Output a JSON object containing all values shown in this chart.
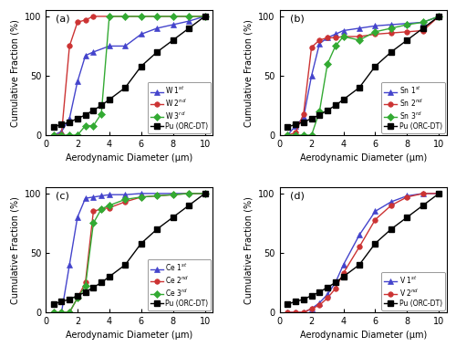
{
  "pu_orc_dt": {
    "x": [
      0.5,
      1.0,
      1.5,
      2.0,
      2.5,
      3.0,
      3.5,
      4.0,
      5.0,
      6.0,
      7.0,
      8.0,
      9.0,
      10.0
    ],
    "y": [
      7,
      9,
      11,
      14,
      17,
      21,
      25,
      30,
      40,
      58,
      70,
      80,
      90,
      100
    ]
  },
  "panel_a": {
    "title": "(a)",
    "series": [
      {
        "label": "W 1$^{st}$",
        "color": "#4444cc",
        "marker": "^",
        "x": [
          0.5,
          1.0,
          1.5,
          2.0,
          2.5,
          3.0,
          4.0,
          5.0,
          6.0,
          7.0,
          8.0,
          9.0,
          10.0
        ],
        "y": [
          0,
          3,
          14,
          45,
          67,
          70,
          75,
          75,
          85,
          90,
          93,
          96,
          100
        ]
      },
      {
        "label": "W 2$^{nd}$",
        "color": "#cc3333",
        "marker": "o",
        "x": [
          0.5,
          1.0,
          1.5,
          2.0,
          2.5,
          3.0,
          10.0
        ],
        "y": [
          0,
          1,
          75,
          95,
          97,
          100,
          100
        ]
      },
      {
        "label": "W 3$^{rd}$",
        "color": "#33aa33",
        "marker": "D",
        "x": [
          0.5,
          1.0,
          1.5,
          2.0,
          2.5,
          3.0,
          3.5,
          4.0,
          5.0,
          6.0,
          7.0,
          8.0,
          9.0,
          10.0
        ],
        "y": [
          0,
          0,
          0,
          0,
          8,
          8,
          18,
          100,
          100,
          100,
          100,
          100,
          100,
          100
        ]
      }
    ]
  },
  "panel_b": {
    "title": "(b)",
    "series": [
      {
        "label": "Sn 1$^{st}$",
        "color": "#4444cc",
        "marker": "^",
        "x": [
          0.5,
          1.0,
          1.5,
          2.0,
          2.5,
          3.0,
          3.5,
          4.0,
          5.0,
          6.0,
          7.0,
          8.0,
          9.0,
          10.0
        ],
        "y": [
          0,
          8,
          15,
          50,
          77,
          82,
          85,
          88,
          90,
          92,
          93,
          94,
          95,
          100
        ]
      },
      {
        "label": "Sn 2$^{nd}$",
        "color": "#cc3333",
        "marker": "o",
        "x": [
          0.5,
          1.0,
          1.5,
          2.0,
          2.5,
          3.0,
          3.5,
          4.0,
          5.0,
          6.0,
          7.0,
          8.0,
          9.0,
          10.0
        ],
        "y": [
          0,
          2,
          18,
          74,
          80,
          82,
          82,
          83,
          83,
          85,
          86,
          87,
          88,
          100
        ]
      },
      {
        "label": "Sn 3$^{rd}$",
        "color": "#33aa33",
        "marker": "D",
        "x": [
          0.5,
          1.0,
          1.5,
          2.0,
          2.5,
          3.0,
          3.5,
          4.0,
          5.0,
          6.0,
          7.0,
          8.0,
          9.0,
          10.0
        ],
        "y": [
          0,
          0,
          0,
          0,
          20,
          60,
          75,
          83,
          80,
          87,
          90,
          93,
          95,
          100
        ]
      }
    ]
  },
  "panel_c": {
    "title": "(c)",
    "series": [
      {
        "label": "Ce 1$^{st}$",
        "color": "#4444cc",
        "marker": "^",
        "x": [
          0.5,
          1.0,
          1.5,
          2.0,
          2.5,
          3.0,
          3.5,
          4.0,
          5.0,
          6.0,
          10.0
        ],
        "y": [
          0,
          0,
          40,
          80,
          96,
          97,
          98,
          99,
          99,
          100,
          100
        ]
      },
      {
        "label": "Ce 2$^{nd}$",
        "color": "#cc3333",
        "marker": "o",
        "x": [
          0.5,
          1.0,
          1.5,
          2.0,
          2.5,
          3.0,
          3.5,
          4.0,
          5.0,
          6.0,
          7.0,
          8.0,
          9.0,
          10.0
        ],
        "y": [
          0,
          0,
          0,
          12,
          25,
          85,
          87,
          88,
          93,
          97,
          98,
          99,
          100,
          100
        ]
      },
      {
        "label": "Ce 3$^{rd}$",
        "color": "#33aa33",
        "marker": "D",
        "x": [
          0.5,
          1.0,
          1.5,
          2.0,
          2.5,
          3.0,
          3.5,
          4.0,
          5.0,
          6.0,
          7.0,
          8.0,
          9.0,
          10.0
        ],
        "y": [
          0,
          0,
          0,
          12,
          22,
          75,
          87,
          90,
          95,
          97,
          98,
          99,
          100,
          100
        ]
      }
    ]
  },
  "panel_d": {
    "title": "(d)",
    "series": [
      {
        "label": "V 1$^{st}$",
        "color": "#4444cc",
        "marker": "^",
        "x": [
          0.5,
          1.0,
          1.5,
          2.0,
          2.5,
          3.0,
          3.5,
          4.0,
          5.0,
          6.0,
          7.0,
          8.0,
          9.0,
          10.0
        ],
        "y": [
          0,
          0,
          0,
          3,
          8,
          15,
          25,
          40,
          65,
          85,
          93,
          98,
          100,
          100
        ]
      },
      {
        "label": "V 2$^{nd}$",
        "color": "#cc3333",
        "marker": "o",
        "x": [
          0.5,
          1.0,
          1.5,
          2.0,
          2.5,
          3.0,
          3.5,
          4.0,
          5.0,
          6.0,
          7.0,
          8.0,
          9.0,
          10.0
        ],
        "y": [
          0,
          0,
          0,
          3,
          6,
          12,
          20,
          33,
          55,
          78,
          90,
          97,
          100,
          100
        ]
      }
    ]
  },
  "pu_label": "Pu (ORC-DT)",
  "pu_color": "#000000",
  "pu_marker": "s",
  "xlim": [
    0,
    10.5
  ],
  "ylim": [
    0,
    105
  ],
  "xticks": [
    0,
    2,
    4,
    6,
    8,
    10
  ],
  "yticks": [
    0,
    50,
    100
  ],
  "xlabel": "Aerodynamic Diameter (μm)",
  "ylabel": "Cumulative Fraction (%)",
  "marker_size": 4,
  "linewidth": 1.0,
  "font_size": 7.0
}
